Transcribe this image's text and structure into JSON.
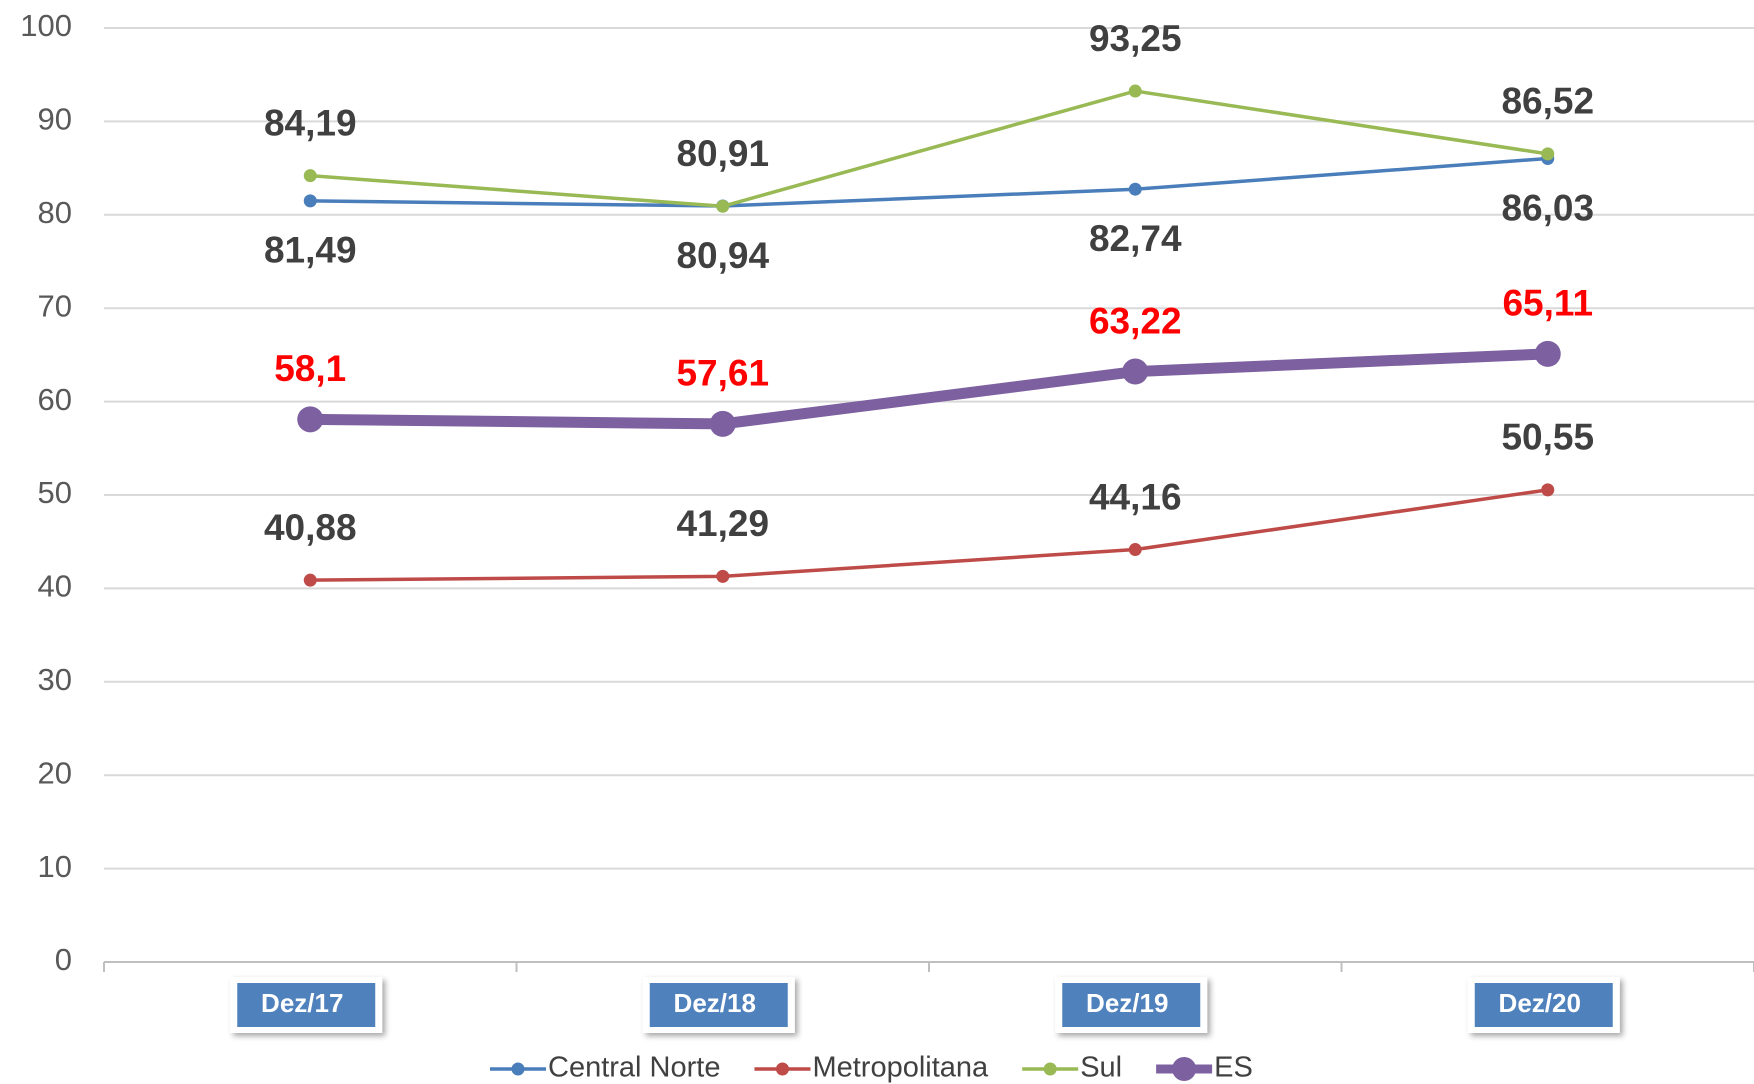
{
  "chart_data": {
    "type": "line",
    "categories": [
      "Dez/17",
      "Dez/18",
      "Dez/19",
      "Dez/20"
    ],
    "ylim": [
      0,
      100
    ],
    "yticks": [
      0,
      10,
      20,
      30,
      40,
      50,
      60,
      70,
      80,
      90,
      100
    ],
    "grid": true,
    "series": [
      {
        "name": "Central Norte",
        "color": "#4a7ebb",
        "label_color": "#404040",
        "values": [
          81.49,
          80.94,
          82.74,
          86.03
        ],
        "value_labels": [
          "81,49",
          "80,94",
          "82,74",
          "86,03"
        ]
      },
      {
        "name": "Metropolitana",
        "color": "#be4b48",
        "label_color": "#404040",
        "values": [
          40.88,
          41.29,
          44.16,
          50.55
        ],
        "value_labels": [
          "40,88",
          "41,29",
          "44,16",
          "50,55"
        ]
      },
      {
        "name": "Sul",
        "color": "#98b954",
        "label_color": "#404040",
        "values": [
          84.19,
          80.91,
          93.25,
          86.52
        ],
        "value_labels": [
          "84,19",
          "80,91",
          "93,25",
          "86,52"
        ]
      },
      {
        "name": "ES",
        "color": "#7d60a0",
        "label_color": "#ff0000",
        "values": [
          58.1,
          57.61,
          63.22,
          65.11
        ],
        "value_labels": [
          "58,1",
          "57,61",
          "63,22",
          "65,11"
        ]
      }
    ]
  }
}
